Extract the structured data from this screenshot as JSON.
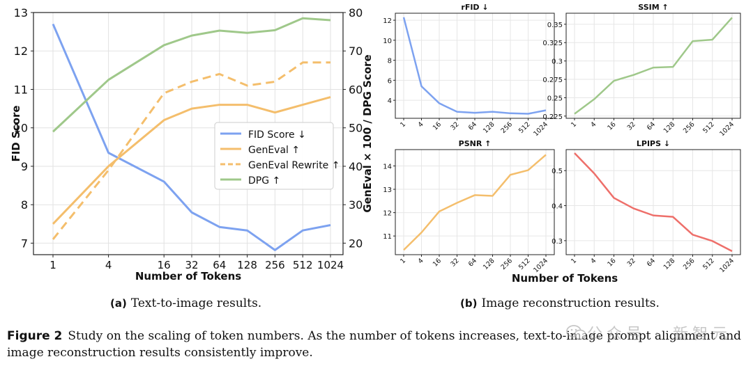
{
  "chart_data": [
    {
      "type": "line",
      "id": "a",
      "xlabel": "Number of Tokens",
      "ylabel_left": "FID Score",
      "ylabel_right": "GenEval × 100 / DPG Score",
      "categories": [
        "1",
        "4",
        "16",
        "32",
        "64",
        "128",
        "256",
        "512",
        "1024"
      ],
      "x": [
        1,
        4,
        16,
        32,
        64,
        128,
        256,
        512,
        1024
      ],
      "x_scale": "log2",
      "ylim_left": [
        6.7,
        13.0
      ],
      "yticks_left": [
        7,
        8,
        9,
        10,
        11,
        12,
        13
      ],
      "ylim_right": [
        17,
        80
      ],
      "yticks_right": [
        20,
        30,
        40,
        50,
        60,
        70,
        80
      ],
      "grid": true,
      "legend_position": "center-right",
      "series": [
        {
          "name": "FID Score ↓",
          "axis": "left",
          "color": "#7DA2F0",
          "dash": "solid",
          "values": [
            12.7,
            9.35,
            8.6,
            7.8,
            7.42,
            7.33,
            6.82,
            7.33,
            7.47
          ]
        },
        {
          "name": "GenEval ↑",
          "axis": "right",
          "color": "#F4BE6C",
          "dash": "solid",
          "values": [
            25,
            40,
            52,
            55,
            56,
            56,
            54,
            56,
            58
          ]
        },
        {
          "name": "GenEval Rewrite ↑",
          "axis": "right",
          "color": "#F4BE6C",
          "dash": "dashed",
          "values": [
            21,
            39,
            59,
            62,
            64,
            61,
            62,
            67,
            67
          ]
        },
        {
          "name": "DPG ↑",
          "axis": "right",
          "color": "#9FC88A",
          "dash": "solid",
          "values": [
            49,
            62.5,
            71.5,
            74,
            75.3,
            74.7,
            75.4,
            78.5,
            78
          ]
        }
      ]
    },
    {
      "type": "line",
      "id": "rfid",
      "title": "rFID ↓",
      "color": "#7DA2F0",
      "categories": [
        "1",
        "4",
        "16",
        "32",
        "64",
        "128",
        "256",
        "512",
        "1024"
      ],
      "values": [
        12.3,
        5.4,
        3.7,
        2.85,
        2.75,
        2.85,
        2.7,
        2.65,
        3.0
      ],
      "ylim": [
        2.2,
        12.7
      ],
      "yticks": [
        4,
        6,
        8,
        10,
        12
      ]
    },
    {
      "type": "line",
      "id": "ssim",
      "title": "SSIM ↑",
      "color": "#9FC88A",
      "categories": [
        "1",
        "4",
        "16",
        "32",
        "64",
        "128",
        "256",
        "512",
        "1024"
      ],
      "values": [
        0.228,
        0.248,
        0.273,
        0.281,
        0.291,
        0.292,
        0.327,
        0.329,
        0.359
      ],
      "ylim": [
        0.222,
        0.365
      ],
      "yticks": [
        0.225,
        0.25,
        0.275,
        0.3,
        0.325,
        0.35
      ]
    },
    {
      "type": "line",
      "id": "psnr",
      "title": "PSNR ↑",
      "color": "#F4BE6C",
      "categories": [
        "1",
        "4",
        "16",
        "32",
        "64",
        "128",
        "256",
        "512",
        "1024"
      ],
      "values": [
        10.4,
        11.15,
        12.05,
        12.42,
        12.75,
        12.72,
        13.62,
        13.82,
        14.48
      ],
      "ylim": [
        10.2,
        14.7
      ],
      "yticks": [
        11,
        12,
        13,
        14
      ]
    },
    {
      "type": "line",
      "id": "lpips",
      "title": "LPIPS ↓",
      "color": "#EE6F6A",
      "categories": [
        "1",
        "4",
        "16",
        "32",
        "64",
        "128",
        "256",
        "512",
        "1024"
      ],
      "values": [
        0.55,
        0.492,
        0.422,
        0.392,
        0.372,
        0.368,
        0.317,
        0.299,
        0.27
      ],
      "ylim": [
        0.26,
        0.56
      ],
      "yticks": [
        0.3,
        0.4,
        0.5
      ]
    }
  ],
  "panel_b_xlabel": "Number of Tokens",
  "captions": {
    "a_label": "(a)",
    "a_text": "Text-to-image results.",
    "b_label": "(b)",
    "b_text": "Image reconstruction results.",
    "figure_label": "Figure 2",
    "figure_text": "Study on the scaling of token numbers. As the number of tokens increases, text-to-image prompt alignment and image reconstruction results consistently improve."
  },
  "watermark": {
    "text": "公众号 · 新智元",
    "icon": "wechat-icon"
  }
}
